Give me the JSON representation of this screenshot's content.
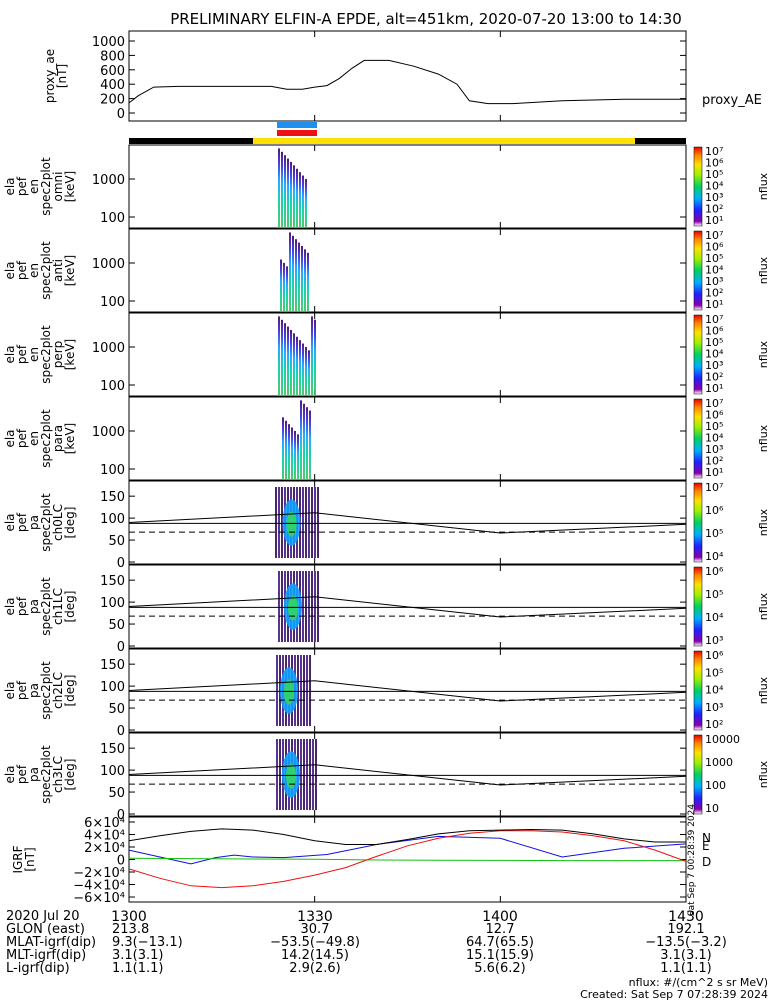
{
  "title": "PRELIMINARY ELFIN-A EPDE, alt=451km, 2020-07-20 13:00 to 14:30",
  "colors": {
    "bar_black": "#000000",
    "bar_yellow": "#ffe000",
    "bar_blue": "#1e8ff0",
    "bar_red": "#ee1111",
    "bx": "#1010dd",
    "by": "#10c010",
    "bz": "#ee1010",
    "bt": "#000000"
  },
  "chart_data": [
    {
      "type": "line",
      "panel": "proxy_ae",
      "ylabel": "proxy_ae\n[nT]",
      "legend": "proxy_AE",
      "yticks": [
        "1000",
        "800",
        "600",
        "400",
        "200",
        "0"
      ],
      "ylim": [
        0,
        1050
      ],
      "series": [
        {
          "name": "proxy_AE",
          "x": [
            0,
            1.5,
            4,
            8,
            14,
            19,
            23,
            25.5,
            28,
            30,
            32,
            34,
            36,
            38,
            42,
            46,
            50,
            53,
            55,
            58,
            62,
            70,
            80,
            90
          ],
          "y": [
            140,
            240,
            360,
            370,
            370,
            370,
            370,
            330,
            330,
            360,
            380,
            480,
            620,
            730,
            730,
            650,
            540,
            400,
            170,
            130,
            130,
            170,
            190,
            190
          ]
        }
      ]
    },
    {
      "type": "heatmap",
      "panel": "spec_omni",
      "ylabel": "ela\npef\nen\nspec2plot\nomni\n[keV]",
      "yticks": [
        "1000",
        "100"
      ],
      "zlabel": "nflux",
      "zticks": [
        "10⁷",
        "10⁶",
        "10⁵",
        "10⁴",
        "10³",
        "10²",
        "10¹"
      ]
    },
    {
      "type": "heatmap",
      "panel": "spec_anti",
      "ylabel": "ela\npef\nen\nspec2plot\nanti\n[keV]",
      "yticks": [
        "1000",
        "100"
      ],
      "zlabel": "nflux",
      "zticks": [
        "10⁷",
        "10⁶",
        "10⁵",
        "10⁴",
        "10³",
        "10²",
        "10¹"
      ]
    },
    {
      "type": "heatmap",
      "panel": "spec_perp",
      "ylabel": "ela\npef\nen\nspec2plot\nperp\n[keV]",
      "yticks": [
        "1000",
        "100"
      ],
      "zlabel": "nflux",
      "zticks": [
        "10⁷",
        "10⁶",
        "10⁵",
        "10⁴",
        "10³",
        "10²",
        "10¹"
      ]
    },
    {
      "type": "heatmap",
      "panel": "spec_para",
      "ylabel": "ela\npef\nen\nspec2plot\npara\n[keV]",
      "yticks": [
        "1000",
        "100"
      ],
      "zlabel": "nflux",
      "zticks": [
        "10⁷",
        "10⁶",
        "10⁵",
        "10⁴",
        "10³",
        "10²",
        "10¹"
      ]
    },
    {
      "type": "heatmap",
      "panel": "pa_ch0",
      "ylabel": "ela\npef\npa\nspec2plot\nch0LC\n[deg]",
      "yticks": [
        "150",
        "100",
        "50",
        "0"
      ],
      "zlabel": "nflux",
      "zticks": [
        "10⁷",
        "10⁶",
        "10⁵",
        "10⁴"
      ]
    },
    {
      "type": "heatmap",
      "panel": "pa_ch1",
      "ylabel": "ela\npef\npa\nspec2plot\nch1LC\n[deg]",
      "yticks": [
        "150",
        "100",
        "50",
        "0"
      ],
      "zlabel": "nflux",
      "zticks": [
        "10⁶",
        "10⁵",
        "10⁴",
        "10³"
      ]
    },
    {
      "type": "heatmap",
      "panel": "pa_ch2",
      "ylabel": "ela\npef\npa\nspec2plot\nch2LC\n[deg]",
      "yticks": [
        "150",
        "100",
        "50",
        "0"
      ],
      "zlabel": "nflux",
      "zticks": [
        "10⁶",
        "10⁵",
        "10⁴",
        "10³",
        "10²"
      ]
    },
    {
      "type": "heatmap",
      "panel": "pa_ch3",
      "ylabel": "ela\npef\npa\nspec2plot\nch3LC\n[deg]",
      "yticks": [
        "150",
        "100",
        "50",
        "0"
      ],
      "zlabel": "nflux",
      "zticks": [
        "10000",
        "1000",
        "100",
        "10"
      ]
    },
    {
      "type": "line",
      "panel": "igrf",
      "ylabel": "IGRF\n[nT]",
      "yticks": [
        "6×10⁴",
        "4×10⁴",
        "2×10⁴",
        "0",
        "−2×10⁴",
        "−4×10⁴",
        "−6×10⁴"
      ],
      "ylim": [
        -60000,
        60000
      ],
      "legend_labels": [
        "N",
        "E",
        "D"
      ],
      "series": [
        {
          "name": "N",
          "x": [
            0,
            5,
            10,
            14,
            17,
            20,
            25,
            32,
            40,
            50,
            60,
            70,
            80,
            90
          ],
          "y": [
            15000,
            4000,
            -7000,
            3000,
            7000,
            4000,
            3000,
            8000,
            24000,
            37000,
            34000,
            4000,
            18000,
            25000
          ]
        },
        {
          "name": "E",
          "x": [
            0,
            10,
            20,
            30,
            40,
            50,
            60,
            70,
            80,
            90
          ],
          "y": [
            2000,
            1500,
            800,
            300,
            -800,
            -1200,
            -1500,
            -1800,
            -1800,
            -1700
          ]
        },
        {
          "name": "D",
          "x": [
            0,
            5,
            10,
            15,
            20,
            25,
            30,
            35,
            40,
            45,
            50,
            55,
            60,
            65,
            70,
            75,
            80,
            85,
            90
          ],
          "y": [
            -15000,
            -30000,
            -42000,
            -45000,
            -42000,
            -35000,
            -25000,
            -13000,
            5000,
            22000,
            34000,
            42000,
            46000,
            46000,
            44000,
            38000,
            30000,
            15000,
            -3000
          ]
        },
        {
          "name": "|B|",
          "x": [
            0,
            5,
            10,
            15,
            20,
            25,
            30,
            35,
            40,
            45,
            50,
            55,
            60,
            65,
            70,
            75,
            80,
            85,
            90
          ],
          "y": [
            30000,
            38000,
            45000,
            49000,
            47000,
            40000,
            30000,
            24000,
            24000,
            32000,
            41000,
            46000,
            47000,
            48000,
            47000,
            41000,
            33000,
            28000,
            28000
          ]
        }
      ]
    }
  ],
  "time_axis": {
    "labels": [
      "1300",
      "1330",
      "1400",
      "1430"
    ]
  },
  "ephemeris": {
    "rows": [
      [
        "2020 Jul 20",
        "1300",
        "",
        "1330",
        "1400",
        "1430"
      ],
      [
        "GLON (east)",
        "213.8",
        "",
        "30.7",
        "12.7",
        "192.1"
      ],
      [
        "MLAT-igrf(dip)",
        "9.3(−13.1)",
        "",
        "−53.5(−49.8)",
        "64.7(65.5)",
        "−13.5(−3.2)"
      ],
      [
        "MLT-igrf(dip)",
        "3.1(3.1)",
        "",
        "14.2(14.5)",
        "15.1(15.9)",
        "3.1(3.1)"
      ],
      [
        "L-igrf(dip)",
        "1.1(1.1)",
        "",
        "2.9(2.6)",
        "5.6(6.2)",
        "1.1(1.1)"
      ]
    ]
  },
  "footer": {
    "units": "nflux: #/(cm^2 s sr MeV)",
    "created": "Created: Sat Sep  7 07:28:39 2024",
    "side_stamp": "Sat Sep  7 00:28:39 2024"
  }
}
